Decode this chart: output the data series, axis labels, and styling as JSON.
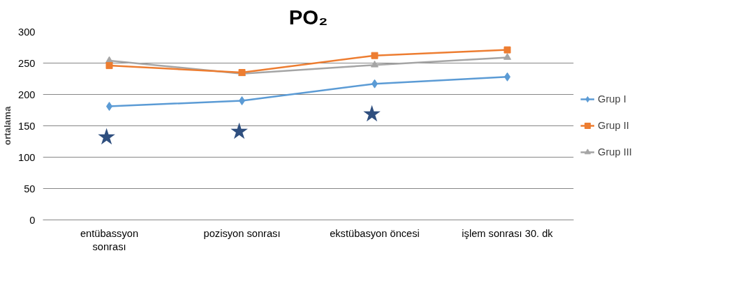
{
  "chart_data": {
    "type": "line",
    "title": "PO₂",
    "ylabel": "ortalama",
    "categories": [
      "entübassyon sonrası",
      "pozisyon sonrası",
      "ekstübasyon öncesi",
      "işlem sonrası 30. dk"
    ],
    "series": [
      {
        "name": "Grup I",
        "color": "#5b9bd5",
        "marker": "diamond",
        "values": [
          181,
          190,
          217,
          228
        ]
      },
      {
        "name": "Grup II",
        "color": "#ed7d31",
        "marker": "square",
        "values": [
          246,
          235,
          262,
          271
        ]
      },
      {
        "name": "Grup III",
        "color": "#a5a5a5",
        "marker": "triangle",
        "values": [
          254,
          233,
          247,
          259
        ]
      }
    ],
    "ylim": [
      0,
      300
    ],
    "yticks": [
      0,
      50,
      100,
      150,
      200,
      250,
      300
    ],
    "grid": "y",
    "legend": "right",
    "annotations": [
      "★",
      "★",
      "★"
    ]
  }
}
